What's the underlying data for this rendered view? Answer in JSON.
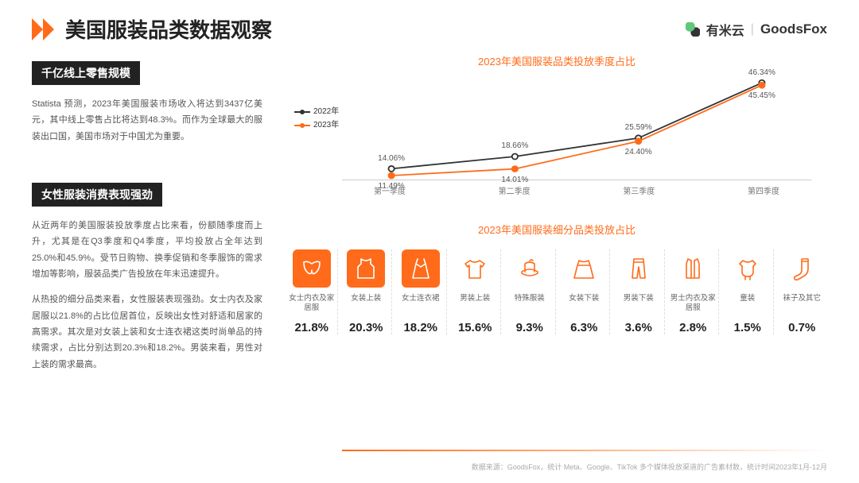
{
  "page_title": "美国服装品类数据观察",
  "brands": {
    "youmiyun": "有米云",
    "goodsfox": "GoodsFox"
  },
  "section1": {
    "title": "千亿线上零售规模",
    "text": "Statista 预测，2023年美国服装市场收入将达到3437亿美元，其中线上零售占比将达到48.3%。而作为全球最大的服装出口国，美国市场对于中国尤为重要。"
  },
  "section2": {
    "title": "女性服装消费表现强劲",
    "text1": "从近两年的美国服装投放季度占比来看，份额随季度而上升，尤其是在Q3季度和Q4季度，平均投放占全年达到25.0%和45.9%。受节日购物、换季促销和冬季服饰的需求增加等影响，服装品类广告投放在年末迅速提升。",
    "text2": "从热投的细分品类来看，女性服装表现强劲。女士内衣及家居服以21.8%的占比位居首位，反映出女性对舒适和居家的高需求。其次是对女装上装和女士连衣裙这类时尚单品的持续需求，占比分别达到20.3%和18.2%。男装来看，男性对上装的需求最高。"
  },
  "linechart": {
    "title": "2023年美国服装品类投放季度占比",
    "series": [
      {
        "name": "2022年",
        "color": "#333333",
        "points": [
          14.06,
          18.66,
          25.59,
          46.34
        ]
      },
      {
        "name": "2023年",
        "color": "#ff6b1a",
        "points": [
          11.49,
          14.01,
          24.4,
          45.45
        ]
      }
    ],
    "xlabels": [
      "第一季度",
      "第二季度",
      "第三季度",
      "第四季度"
    ],
    "ylim": [
      10,
      50
    ]
  },
  "categories": {
    "title": "2023年美国服装细分品类投放占比",
    "items": [
      {
        "label": "女士内衣及家居服",
        "value": "21.8%",
        "featured": true,
        "icon": "bra"
      },
      {
        "label": "女装上装",
        "value": "20.3%",
        "featured": true,
        "icon": "tank"
      },
      {
        "label": "女士连衣裙",
        "value": "18.2%",
        "featured": true,
        "icon": "dress"
      },
      {
        "label": "男装上装",
        "value": "15.6%",
        "featured": false,
        "icon": "shirt"
      },
      {
        "label": "特殊服装",
        "value": "9.3%",
        "featured": false,
        "icon": "hat"
      },
      {
        "label": "女装下装",
        "value": "6.3%",
        "featured": false,
        "icon": "skirt"
      },
      {
        "label": "男装下装",
        "value": "3.6%",
        "featured": false,
        "icon": "pants"
      },
      {
        "label": "男士内衣及家居服",
        "value": "2.8%",
        "featured": false,
        "icon": "vest"
      },
      {
        "label": "童装",
        "value": "1.5%",
        "featured": false,
        "icon": "onesie"
      },
      {
        "label": "袜子及其它",
        "value": "0.7%",
        "featured": false,
        "icon": "sock"
      }
    ]
  },
  "footer": "数据来源：GoodsFox，统计 Meta、Google、TikTok 多个媒体投放渠道的广告素材数，统计时间2023年1月-12月",
  "colors": {
    "accent": "#ff6b1a",
    "dark": "#222222",
    "text": "#555555",
    "light": "#ffb380"
  }
}
